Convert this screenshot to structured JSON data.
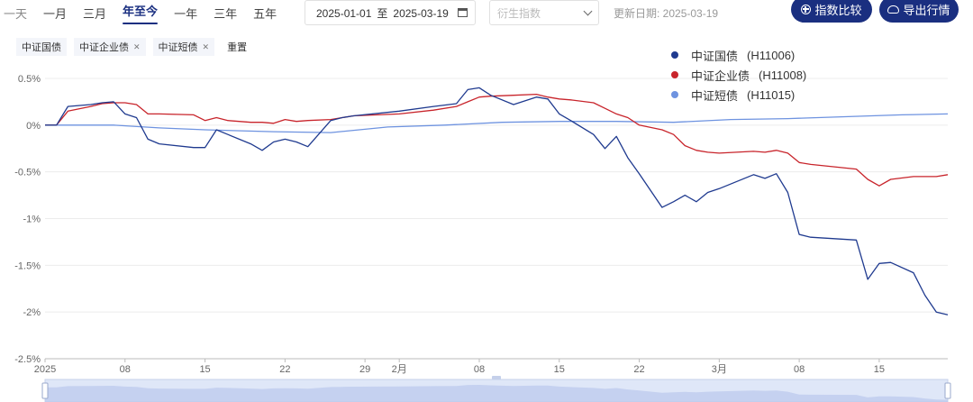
{
  "toolbar": {
    "range_tabs": [
      "一天",
      "一月",
      "三月",
      "年至今",
      "一年",
      "三年",
      "五年"
    ],
    "active_range": "年至今",
    "date_start": "2025-01-01",
    "date_sep": "至",
    "date_end": "2025-03-19",
    "derived_placeholder": "衍生指数",
    "update_label": "更新日期: 2025-03-19",
    "compare_button": "指数比较",
    "export_button": "导出行情"
  },
  "chips": [
    {
      "label": "中证国债",
      "closable": false
    },
    {
      "label": "中证企业债",
      "closable": true
    },
    {
      "label": "中证短债",
      "closable": true
    }
  ],
  "reset_label": "重置",
  "legend": [
    {
      "name": "中证国债",
      "code": "(H11006)",
      "color": "#1f3a8f"
    },
    {
      "name": "中证企业债",
      "code": "(H11008)",
      "color": "#c8242b"
    },
    {
      "name": "中证短债",
      "code": "(H11015)",
      "color": "#6e93e0"
    }
  ],
  "chart_data": {
    "type": "line",
    "x_tick_labels": [
      "2025",
      "08",
      "15",
      "22",
      "29",
      "2月",
      "08",
      "15",
      "22",
      "3月",
      "08",
      "15"
    ],
    "x_tick_days": [
      0,
      7,
      14,
      21,
      28,
      31,
      38,
      45,
      52,
      59,
      66,
      73
    ],
    "y_ticks": [
      "0.5%",
      "0%",
      "-0.5%",
      "-1%",
      "-1.5%",
      "-2%",
      "-2.5%"
    ],
    "y_tick_values": [
      0.5,
      0,
      -0.5,
      -1,
      -1.5,
      -2,
      -2.5
    ],
    "ylim": [
      -2.5,
      0.5
    ],
    "grid": true,
    "legend_position": "top-right",
    "series": [
      {
        "name": "中证国债",
        "color": "#1f3a8f",
        "x": [
          0,
          1,
          2,
          4,
          5,
          6,
          7,
          8,
          9,
          10,
          13,
          14,
          15,
          16,
          18,
          19,
          20,
          21,
          22,
          23,
          25,
          26,
          27,
          31,
          34,
          36,
          37,
          38,
          39,
          41,
          43,
          44,
          45,
          46,
          48,
          49,
          50,
          51,
          52,
          54,
          55,
          56,
          57,
          58,
          59,
          62,
          63,
          64,
          65,
          66,
          67,
          71,
          72,
          73,
          74,
          76,
          77,
          78,
          79
        ],
        "values": [
          0,
          0,
          0.2,
          0.22,
          0.24,
          0.25,
          0.12,
          0.08,
          -0.15,
          -0.2,
          -0.24,
          -0.24,
          -0.05,
          -0.1,
          -0.2,
          -0.27,
          -0.18,
          -0.15,
          -0.18,
          -0.23,
          0.05,
          0.08,
          0.1,
          0.15,
          0.2,
          0.23,
          0.38,
          0.4,
          0.32,
          0.22,
          0.3,
          0.28,
          0.12,
          0.05,
          -0.1,
          -0.25,
          -0.12,
          -0.35,
          -0.52,
          -0.88,
          -0.82,
          -0.75,
          -0.82,
          -0.72,
          -0.68,
          -0.53,
          -0.57,
          -0.52,
          -0.72,
          -1.17,
          -1.2,
          -1.23,
          -1.65,
          -1.48,
          -1.47,
          -1.58,
          -1.82,
          -2.0,
          -2.03
        ]
      },
      {
        "name": "中证企业债",
        "color": "#c8242b",
        "x": [
          0,
          1,
          2,
          4,
          5,
          6,
          7,
          8,
          9,
          10,
          13,
          14,
          15,
          16,
          18,
          19,
          20,
          21,
          22,
          23,
          25,
          26,
          27,
          31,
          34,
          36,
          37,
          38,
          39,
          41,
          43,
          44,
          45,
          46,
          48,
          49,
          50,
          51,
          52,
          54,
          55,
          56,
          57,
          58,
          59,
          62,
          63,
          64,
          65,
          66,
          67,
          71,
          72,
          73,
          74,
          76,
          77,
          78,
          79
        ],
        "values": [
          0,
          0,
          0.15,
          0.2,
          0.23,
          0.24,
          0.24,
          0.22,
          0.12,
          0.12,
          0.11,
          0.05,
          0.08,
          0.05,
          0.03,
          0.03,
          0.02,
          0.06,
          0.04,
          0.05,
          0.06,
          0.08,
          0.1,
          0.12,
          0.16,
          0.2,
          0.25,
          0.3,
          0.31,
          0.32,
          0.33,
          0.3,
          0.28,
          0.27,
          0.24,
          0.18,
          0.12,
          0.08,
          0.0,
          -0.05,
          -0.1,
          -0.22,
          -0.27,
          -0.29,
          -0.3,
          -0.28,
          -0.29,
          -0.27,
          -0.3,
          -0.4,
          -0.42,
          -0.47,
          -0.58,
          -0.65,
          -0.58,
          -0.55,
          -0.55,
          -0.55,
          -0.53
        ]
      },
      {
        "name": "中证短债",
        "color": "#6e93e0",
        "x": [
          0,
          2,
          6,
          10,
          14,
          20,
          25,
          30,
          35,
          40,
          45,
          50,
          55,
          60,
          65,
          70,
          75,
          79
        ],
        "values": [
          0,
          0,
          0,
          -0.03,
          -0.05,
          -0.07,
          -0.08,
          -0.02,
          0,
          0.03,
          0.04,
          0.04,
          0.03,
          0.06,
          0.07,
          0.09,
          0.11,
          0.12
        ]
      }
    ]
  }
}
